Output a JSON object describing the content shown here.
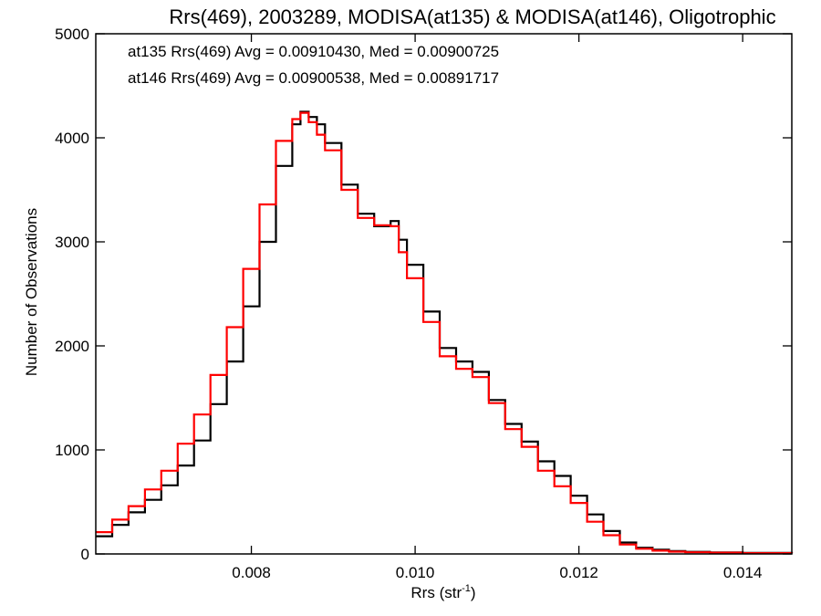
{
  "chart_data": {
    "type": "line",
    "step": true,
    "title": "Rrs(469), 2003289, MODISA(at135) & MODISA(at146), Oligotrophic",
    "xlabel": "Rrs (str",
    "xlabel_sup": "-1",
    "xlabel_end": ")",
    "ylabel": "Number of Observations",
    "xlim": [
      0.0061,
      0.0146
    ],
    "ylim": [
      0,
      5000
    ],
    "grid": false,
    "x_ticks": [
      {
        "v": 0.008,
        "label": "0.008"
      },
      {
        "v": 0.01,
        "label": "0.010"
      },
      {
        "v": 0.012,
        "label": "0.012"
      },
      {
        "v": 0.014,
        "label": "0.014"
      }
    ],
    "y_ticks": [
      {
        "v": 0,
        "label": "0"
      },
      {
        "v": 1000,
        "label": "1000"
      },
      {
        "v": 2000,
        "label": "2000"
      },
      {
        "v": 3000,
        "label": "3000"
      },
      {
        "v": 4000,
        "label": "4000"
      },
      {
        "v": 5000,
        "label": "5000"
      }
    ],
    "annotations": [
      {
        "text": "at135 Rrs(469) Avg = 0.00910430, Med = 0.00900725",
        "color": "#000000"
      },
      {
        "text": "at146 Rrs(469) Avg = 0.00900538, Med = 0.00891717",
        "color": "#ff0000"
      }
    ],
    "series": [
      {
        "color": "#000000",
        "x": [
          0.0061,
          0.0063,
          0.0065,
          0.0067,
          0.0069,
          0.0071,
          0.0073,
          0.0075,
          0.0077,
          0.0079,
          0.0081,
          0.0083,
          0.0085,
          0.0086,
          0.0087,
          0.0088,
          0.0089,
          0.0091,
          0.0093,
          0.0095,
          0.0097,
          0.0098,
          0.0099,
          0.0101,
          0.0103,
          0.0105,
          0.0107,
          0.0109,
          0.0111,
          0.0113,
          0.0115,
          0.0117,
          0.0119,
          0.0121,
          0.0123,
          0.0125,
          0.0127,
          0.0129,
          0.0131,
          0.0133,
          0.0136,
          0.014,
          0.0146
        ],
        "y": [
          170,
          280,
          400,
          520,
          660,
          850,
          1090,
          1440,
          1850,
          2380,
          3000,
          3730,
          4130,
          4250,
          4200,
          4130,
          3950,
          3550,
          3270,
          3150,
          3200,
          3020,
          2780,
          2330,
          1980,
          1850,
          1750,
          1480,
          1250,
          1080,
          890,
          750,
          560,
          380,
          220,
          110,
          60,
          40,
          28,
          20,
          15,
          10,
          5
        ]
      },
      {
        "color": "#ff0000",
        "x": [
          0.0061,
          0.0063,
          0.0065,
          0.0067,
          0.0069,
          0.0071,
          0.0073,
          0.0075,
          0.0077,
          0.0079,
          0.0081,
          0.0083,
          0.0085,
          0.0086,
          0.0087,
          0.0088,
          0.0089,
          0.0091,
          0.0093,
          0.0095,
          0.0097,
          0.0098,
          0.0099,
          0.0101,
          0.0103,
          0.0105,
          0.0107,
          0.0109,
          0.0111,
          0.0113,
          0.0115,
          0.0117,
          0.0119,
          0.0121,
          0.0123,
          0.0125,
          0.0127,
          0.0129,
          0.0131,
          0.0133,
          0.0136,
          0.014,
          0.0146
        ],
        "y": [
          210,
          330,
          460,
          620,
          800,
          1060,
          1340,
          1720,
          2180,
          2740,
          3360,
          3970,
          4180,
          4240,
          4150,
          4030,
          3880,
          3500,
          3230,
          3160,
          3150,
          2900,
          2650,
          2230,
          1900,
          1780,
          1700,
          1450,
          1200,
          1030,
          800,
          650,
          490,
          310,
          180,
          90,
          50,
          32,
          22,
          16,
          12,
          8,
          5
        ]
      }
    ]
  }
}
